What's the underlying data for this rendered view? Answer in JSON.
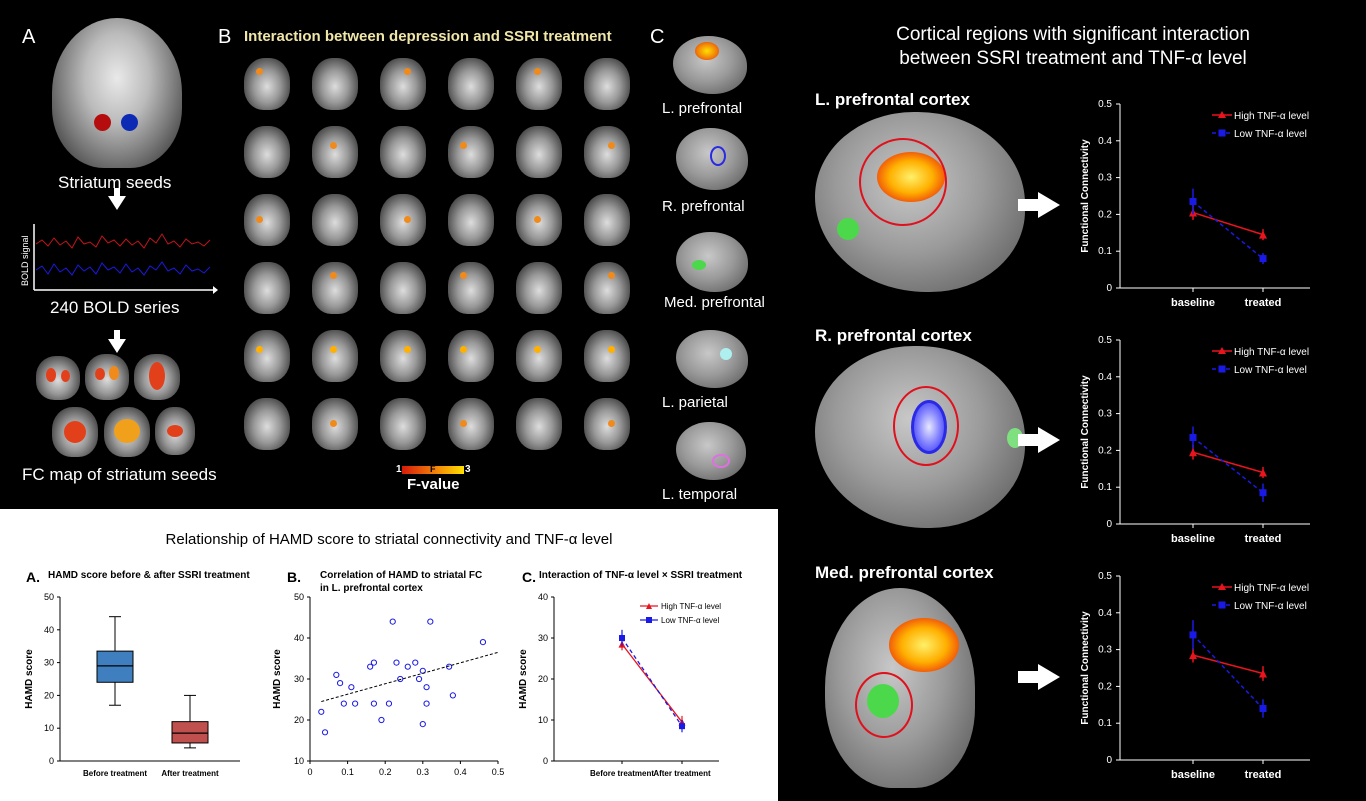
{
  "panel_a": {
    "label": "A",
    "seeds_caption": "Striatum seeds",
    "bold_ylabel": "BOLD signal",
    "series_caption": "240 BOLD series",
    "fc_caption": "FC map of striatum seeds"
  },
  "panel_b": {
    "label": "B",
    "title": "Interaction between depression and SSRI treatment",
    "colorbar_min": "1",
    "colorbar_mid": "F",
    "colorbar_max": "3",
    "colorbar_label": "F-value"
  },
  "panel_c": {
    "label": "C",
    "regions": [
      "L. prefrontal",
      "R. prefrontal",
      "Med. prefrontal",
      "L. parietal",
      "L. temporal"
    ]
  },
  "right": {
    "title_line1": "Cortical regions with significant interaction",
    "title_line2": "between SSRI treatment and TNF-α level",
    "rows": [
      {
        "label": "L. prefrontal cortex"
      },
      {
        "label": "R. prefrontal cortex"
      },
      {
        "label": "Med. prefrontal cortex"
      }
    ]
  },
  "bottom": {
    "title": "Relationship of HAMD score to striatal connectivity and TNF-α level",
    "a_label": "A.",
    "a_title": "HAMD score before & after SSRI treatment",
    "b_label": "B.",
    "b_title_line1": "Correlation of HAMD to striatal FC",
    "b_title_line2": "in L. prefrontal cortex",
    "c_label": "C.",
    "c_title": "Interaction of TNF-α level × SSRI treatment"
  },
  "colors": {
    "high": "#e8141e",
    "low": "#1a1ae6",
    "box_before": "#3f7fc0",
    "box_after": "#c0504d",
    "scatter": "#1a1ae6"
  },
  "chart_data": [
    {
      "id": "fc-l-prefrontal",
      "type": "line",
      "categories": [
        "baseline",
        "treated"
      ],
      "ylabel": "Functional Connectivity",
      "ylim": [
        0,
        0.5
      ],
      "yticks": [
        "0",
        "0.1",
        "0.2",
        "0.3",
        "0.4",
        "0.5"
      ],
      "legend_position": "top-right",
      "series": [
        {
          "name": "High TNF-α level",
          "values": [
            0.205,
            0.145
          ],
          "err": [
            0.02,
            0.015
          ]
        },
        {
          "name": "Low TNF-α level",
          "values": [
            0.235,
            0.08
          ],
          "err": [
            0.035,
            0.015
          ]
        }
      ]
    },
    {
      "id": "fc-r-prefrontal",
      "type": "line",
      "categories": [
        "baseline",
        "treated"
      ],
      "ylabel": "Functional Connectivity",
      "ylim": [
        0,
        0.5
      ],
      "yticks": [
        "0",
        "0.1",
        "0.2",
        "0.3",
        "0.4",
        "0.5"
      ],
      "legend_position": "top-right",
      "series": [
        {
          "name": "High TNF-α level",
          "values": [
            0.195,
            0.14
          ],
          "err": [
            0.02,
            0.015
          ]
        },
        {
          "name": "Low TNF-α level",
          "values": [
            0.235,
            0.085
          ],
          "err": [
            0.03,
            0.025
          ]
        }
      ]
    },
    {
      "id": "fc-med-prefrontal",
      "type": "line",
      "categories": [
        "baseline",
        "treated"
      ],
      "ylabel": "Functional Connectivity",
      "ylim": [
        0,
        0.5
      ],
      "yticks": [
        "0",
        "0.1",
        "0.2",
        "0.3",
        "0.4",
        "0.5"
      ],
      "legend_position": "top-right",
      "series": [
        {
          "name": "High TNF-α level",
          "values": [
            0.285,
            0.235
          ],
          "err": [
            0.02,
            0.02
          ]
        },
        {
          "name": "Low TNF-α level",
          "values": [
            0.34,
            0.14
          ],
          "err": [
            0.04,
            0.025
          ]
        }
      ]
    },
    {
      "id": "hamd-box",
      "type": "box",
      "ylabel": "HAMD score",
      "ylim": [
        0,
        50
      ],
      "yticks": [
        "0",
        "10",
        "20",
        "30",
        "40",
        "50"
      ],
      "categories": [
        "Before treatment",
        "After treatment"
      ],
      "boxes": [
        {
          "min": 17,
          "q1": 24,
          "median": 29,
          "q3": 33.5,
          "max": 44
        },
        {
          "min": 4,
          "q1": 5.5,
          "median": 8.5,
          "q3": 12,
          "max": 20
        }
      ]
    },
    {
      "id": "hamd-scatter",
      "type": "scatter",
      "ylabel": "HAMD score",
      "xlim": [
        0,
        0.5
      ],
      "ylim": [
        10,
        50
      ],
      "xticks": [
        "0",
        "0.1",
        "0.2",
        "0.3",
        "0.4",
        "0.5"
      ],
      "yticks": [
        "10",
        "20",
        "30",
        "40",
        "50"
      ],
      "x": [
        0.03,
        0.04,
        0.07,
        0.08,
        0.09,
        0.11,
        0.12,
        0.16,
        0.17,
        0.17,
        0.19,
        0.21,
        0.22,
        0.23,
        0.24,
        0.26,
        0.28,
        0.29,
        0.3,
        0.3,
        0.31,
        0.31,
        0.32,
        0.37,
        0.38,
        0.46
      ],
      "y": [
        22,
        17,
        31,
        29,
        24,
        28,
        24,
        33,
        34,
        24,
        20,
        24,
        44,
        34,
        30,
        33,
        34,
        30,
        32,
        19,
        28,
        24,
        44,
        33,
        26,
        39
      ],
      "trend": [
        [
          0.03,
          24.5
        ],
        [
          0.5,
          36.5
        ]
      ]
    },
    {
      "id": "hamd-interaction",
      "type": "line",
      "ylabel": "HAMD score",
      "ylim": [
        0,
        40
      ],
      "yticks": [
        "0",
        "10",
        "20",
        "30",
        "40"
      ],
      "categories": [
        "Before treatment",
        "After treatment"
      ],
      "legend_position": "top-right",
      "series": [
        {
          "name": "High TNF-α level",
          "values": [
            28.5,
            9.5
          ],
          "err": [
            1.5,
            1.5
          ]
        },
        {
          "name": "Low TNF-α level",
          "values": [
            30,
            8.5
          ],
          "err": [
            2,
            1.5
          ]
        }
      ]
    }
  ]
}
